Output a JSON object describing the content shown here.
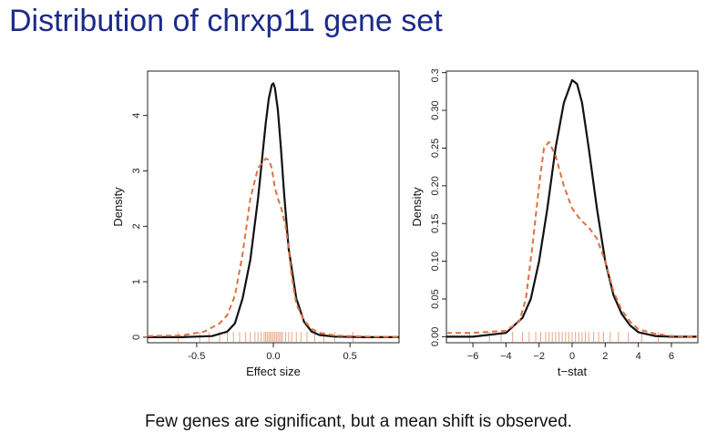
{
  "slide": {
    "title": "Distribution of chrxp11 gene set",
    "caption": "Few genes are significant, but a mean shift is observed."
  },
  "colors": {
    "title": "#1c2a8a",
    "solid_line": "#111111",
    "dashed_line": "#e07040",
    "rug": "#e8a888"
  },
  "chart_data": [
    {
      "type": "line",
      "title": "",
      "xlabel": "Effect size",
      "ylabel": "Density",
      "xlim": [
        -0.82,
        0.82
      ],
      "ylim": [
        -0.1,
        4.8
      ],
      "xticks": [
        -0.5,
        0.0,
        0.5
      ],
      "xtick_labels": [
        "-0.5",
        "0.0",
        "0.5"
      ],
      "yticks": [
        0,
        1,
        2,
        3,
        4
      ],
      "ytick_labels": [
        "0",
        "1",
        "2",
        "3",
        "4"
      ],
      "series": [
        {
          "style": "solid",
          "color": "#111111",
          "x": [
            -0.82,
            -0.6,
            -0.4,
            -0.3,
            -0.25,
            -0.2,
            -0.15,
            -0.1,
            -0.07,
            -0.05,
            -0.03,
            -0.01,
            0.0,
            0.01,
            0.03,
            0.05,
            0.07,
            0.1,
            0.15,
            0.2,
            0.25,
            0.3,
            0.4,
            0.6,
            0.82
          ],
          "y": [
            0.0,
            0.0,
            0.02,
            0.1,
            0.25,
            0.7,
            1.4,
            2.5,
            3.3,
            3.85,
            4.3,
            4.55,
            4.58,
            4.5,
            4.1,
            3.4,
            2.6,
            1.6,
            0.7,
            0.28,
            0.1,
            0.04,
            0.01,
            0.0,
            0.0
          ]
        },
        {
          "style": "dashed",
          "color": "#e07040",
          "x": [
            -0.82,
            -0.6,
            -0.45,
            -0.35,
            -0.3,
            -0.25,
            -0.2,
            -0.15,
            -0.1,
            -0.05,
            -0.03,
            -0.01,
            0.01,
            0.03,
            0.05,
            0.08,
            0.1,
            0.12,
            0.15,
            0.2,
            0.25,
            0.3,
            0.4,
            0.6,
            0.82
          ],
          "y": [
            0.02,
            0.03,
            0.1,
            0.25,
            0.4,
            0.75,
            1.5,
            2.5,
            3.05,
            3.22,
            3.2,
            3.05,
            2.7,
            2.5,
            2.35,
            2.0,
            1.6,
            1.1,
            0.6,
            0.3,
            0.15,
            0.08,
            0.03,
            0.01,
            0.0
          ]
        }
      ],
      "rug": [
        -0.62,
        -0.48,
        -0.42,
        -0.35,
        -0.3,
        -0.26,
        -0.22,
        -0.18,
        -0.15,
        -0.12,
        -0.1,
        -0.08,
        -0.06,
        -0.05,
        -0.04,
        -0.03,
        -0.02,
        -0.01,
        0.0,
        0.01,
        0.02,
        0.03,
        0.04,
        0.05,
        0.06,
        0.08,
        0.1,
        0.12,
        0.15,
        0.18,
        0.22,
        0.27,
        0.33,
        0.4,
        0.52
      ]
    },
    {
      "type": "line",
      "title": "",
      "xlabel": "t−stat",
      "ylabel": "Density",
      "xlim": [
        -7.6,
        7.6
      ],
      "ylim": [
        -0.008,
        0.352
      ],
      "xticks": [
        -6,
        -4,
        -2,
        0,
        2,
        4,
        6
      ],
      "xtick_labels": [
        "−6",
        "−4",
        "−2",
        "0",
        "2",
        "4",
        "6"
      ],
      "yticks": [
        0.0,
        0.05,
        0.1,
        0.15,
        0.2,
        0.25,
        0.3,
        0.35
      ],
      "ytick_labels": [
        "0.00",
        "0.05",
        "0.10",
        "0.15",
        "0.20",
        "0.25",
        "0.30",
        "0.35"
      ],
      "series": [
        {
          "style": "solid",
          "color": "#111111",
          "x": [
            -7.6,
            -6,
            -4,
            -3,
            -2.5,
            -2,
            -1.5,
            -1,
            -0.5,
            0,
            0.3,
            0.6,
            1.0,
            1.5,
            2.0,
            2.5,
            3.0,
            3.5,
            4.0,
            5.0,
            6.0,
            7.6
          ],
          "y": [
            0.0,
            0.0,
            0.005,
            0.025,
            0.05,
            0.1,
            0.17,
            0.25,
            0.31,
            0.34,
            0.335,
            0.31,
            0.25,
            0.17,
            0.1,
            0.055,
            0.03,
            0.015,
            0.006,
            0.001,
            0.0,
            0.0
          ]
        },
        {
          "style": "dashed",
          "color": "#e07040",
          "x": [
            -7.6,
            -6,
            -4,
            -3.2,
            -2.8,
            -2.4,
            -2.0,
            -1.7,
            -1.4,
            -1.0,
            -0.5,
            0.0,
            0.5,
            1.0,
            1.5,
            2.0,
            2.5,
            3.0,
            3.5,
            4.0,
            5.0,
            6.0,
            7.6
          ],
          "y": [
            0.005,
            0.005,
            0.008,
            0.02,
            0.05,
            0.12,
            0.2,
            0.25,
            0.258,
            0.24,
            0.2,
            0.17,
            0.155,
            0.145,
            0.13,
            0.1,
            0.06,
            0.035,
            0.02,
            0.01,
            0.004,
            0.001,
            0.0
          ]
        }
      ],
      "rug": [
        -6.2,
        -5.0,
        -4.3,
        -3.6,
        -3.0,
        -2.6,
        -2.2,
        -1.9,
        -1.6,
        -1.4,
        -1.2,
        -1.0,
        -0.8,
        -0.6,
        -0.4,
        -0.2,
        0.0,
        0.2,
        0.4,
        0.6,
        0.8,
        1.0,
        1.3,
        1.6,
        1.9,
        2.3,
        2.8,
        3.4,
        4.2,
        5.2
      ]
    }
  ]
}
